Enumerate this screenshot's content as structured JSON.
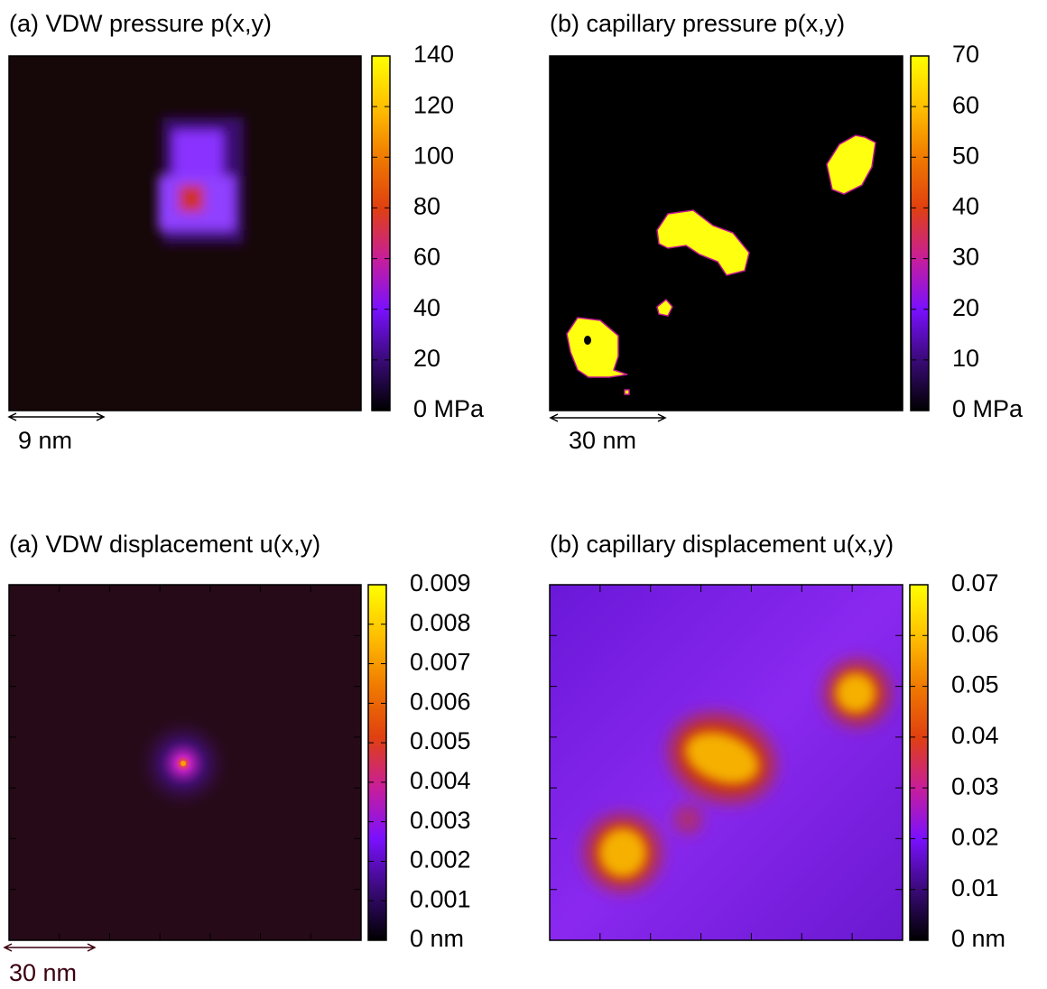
{
  "chart_data": [
    {
      "type": "heatmap",
      "title": "(a) VDW pressure p(x,y)",
      "clim": [
        0,
        140
      ],
      "cticks": [
        {
          "value": 0,
          "label": "0 MPa"
        },
        20,
        40,
        60,
        80,
        100,
        120,
        140
      ],
      "scale_bar": "9 nm",
      "colormap": [
        "#000000",
        "#3a0a78",
        "#7a10ff",
        "#c81e9a",
        "#e04010",
        "#f07a00",
        "#ffc000",
        "#ffff00"
      ]
    },
    {
      "type": "heatmap",
      "title": "(b) capillary pressure p(x,y)",
      "clim": [
        0,
        70
      ],
      "cticks": [
        {
          "value": 0,
          "label": "0 MPa"
        },
        10,
        20,
        30,
        40,
        50,
        60,
        70
      ],
      "scale_bar": "30 nm",
      "colormap": [
        "#000000",
        "#3a0a78",
        "#7a10ff",
        "#c81e9a",
        "#e04010",
        "#f07a00",
        "#ffc000",
        "#ffff00"
      ]
    },
    {
      "type": "heatmap",
      "title": "(a) VDW displacement u(x,y)",
      "clim": [
        0,
        0.009
      ],
      "cticks": [
        {
          "value": 0,
          "label": "0 nm"
        },
        0.001,
        0.002,
        0.003,
        0.004,
        0.005,
        0.006,
        0.007,
        0.008,
        0.009
      ],
      "scale_bar": "30 nm",
      "colormap": [
        "#000000",
        "#3a0a78",
        "#7a10ff",
        "#c81e9a",
        "#e04010",
        "#f07a00",
        "#ffc000",
        "#ffff00"
      ]
    },
    {
      "type": "heatmap",
      "title": "(b) capillary displacement u(x,y)",
      "clim": [
        0,
        0.07
      ],
      "cticks": [
        {
          "value": 0,
          "label": "0 nm"
        },
        0.01,
        0.02,
        0.03,
        0.04,
        0.05,
        0.06,
        0.07
      ],
      "colormap": [
        "#000000",
        "#3a0a78",
        "#7a10ff",
        "#c81e9a",
        "#e04010",
        "#f07a00",
        "#ffc000",
        "#ffff00"
      ]
    }
  ]
}
